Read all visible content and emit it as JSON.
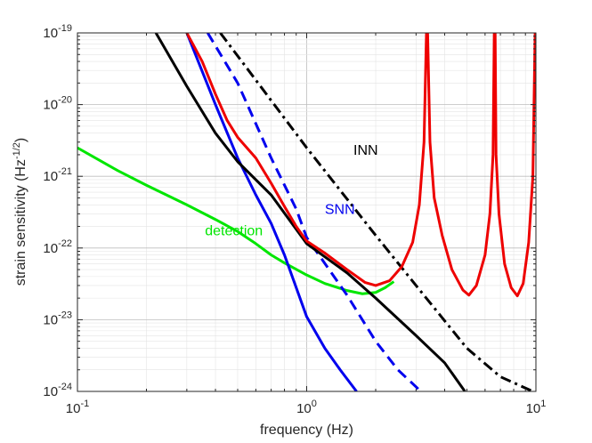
{
  "chart_data": {
    "type": "line",
    "xscale": "log",
    "yscale": "log",
    "xlim": [
      0.1,
      10
    ],
    "ylim": [
      1e-24,
      1e-19
    ],
    "xlabel": "frequency (Hz)",
    "ylabel_main": "strain sensitivity (Hz",
    "ylabel_exp": "-1/2",
    "ylabel_close": ")",
    "grid": true,
    "x_ticks": [
      {
        "value": 0.1,
        "base": "10",
        "exp": "-1"
      },
      {
        "value": 1,
        "base": "10",
        "exp": "0"
      },
      {
        "value": 10,
        "base": "10",
        "exp": "1"
      }
    ],
    "y_ticks": [
      {
        "value": 1e-24,
        "base": "10",
        "exp": "-24"
      },
      {
        "value": 1e-23,
        "base": "10",
        "exp": "-23"
      },
      {
        "value": 1e-22,
        "base": "10",
        "exp": "-22"
      },
      {
        "value": 1e-21,
        "base": "10",
        "exp": "-21"
      },
      {
        "value": 1e-20,
        "base": "10",
        "exp": "-20"
      },
      {
        "value": 1e-19,
        "base": "10",
        "exp": "-19"
      }
    ],
    "series": [
      {
        "name": "detection",
        "color": "#00e600",
        "dash": "solid",
        "points": [
          [
            0.1,
            2.5e-21
          ],
          [
            0.15,
            1.2e-21
          ],
          [
            0.2,
            7.5e-22
          ],
          [
            0.3,
            4e-22
          ],
          [
            0.4,
            2.5e-22
          ],
          [
            0.5,
            1.7e-22
          ],
          [
            0.6,
            1.15e-22
          ],
          [
            0.7,
            8e-23
          ],
          [
            0.8,
            6.2e-23
          ],
          [
            1.0,
            4.2e-23
          ],
          [
            1.2,
            3.2e-23
          ],
          [
            1.5,
            2.55e-23
          ],
          [
            1.75,
            2.3e-23
          ],
          [
            2.0,
            2.4e-23
          ],
          [
            2.2,
            2.8e-23
          ],
          [
            2.4,
            3.4e-23
          ]
        ]
      },
      {
        "name": "SNN",
        "color": "#0000ee",
        "dash": "solid",
        "points": [
          [
            0.3,
            1e-19
          ],
          [
            0.4,
            1e-20
          ],
          [
            0.5,
            1.8e-21
          ],
          [
            0.6,
            5.5e-22
          ],
          [
            0.7,
            2.2e-22
          ],
          [
            0.8,
            8e-23
          ],
          [
            1.0,
            1.1e-23
          ],
          [
            1.2,
            4e-24
          ],
          [
            1.4,
            2e-24
          ],
          [
            1.65,
            1e-24
          ]
        ]
      },
      {
        "name": "SNN-dashed",
        "color": "#0000ee",
        "dash": "dashed",
        "points": [
          [
            0.37,
            1e-19
          ],
          [
            0.5,
            2e-20
          ],
          [
            0.7,
            1.8e-21
          ],
          [
            0.9,
            3.5e-22
          ],
          [
            1.0,
            1.4e-22
          ],
          [
            1.5,
            2.2e-23
          ],
          [
            2.0,
            5e-24
          ],
          [
            2.5,
            2e-24
          ],
          [
            3.15,
            1e-24
          ]
        ]
      },
      {
        "name": "black-solid",
        "color": "#000000",
        "dash": "solid",
        "points": [
          [
            0.22,
            1e-19
          ],
          [
            0.3,
            1.8e-20
          ],
          [
            0.4,
            4e-21
          ],
          [
            0.5,
            1.6e-21
          ],
          [
            0.7,
            5.5e-22
          ],
          [
            1.0,
            1.15e-22
          ],
          [
            1.5,
            4.5e-23
          ],
          [
            2.0,
            2e-23
          ],
          [
            3.0,
            6e-24
          ],
          [
            4.0,
            2.5e-24
          ],
          [
            4.9,
            1e-24
          ]
        ]
      },
      {
        "name": "INN",
        "color": "#000000",
        "dash": "dashdot",
        "points": [
          [
            0.42,
            1e-19
          ],
          [
            0.6,
            2.2e-20
          ],
          [
            1.0,
            2.5e-21
          ],
          [
            2.0,
            1.5e-22
          ],
          [
            3.0,
            3e-23
          ],
          [
            5.0,
            4e-24
          ],
          [
            7.0,
            1.6e-24
          ],
          [
            9.7,
            1e-24
          ]
        ]
      },
      {
        "name": "red",
        "color": "#ee0000",
        "dash": "solid",
        "points": [
          [
            0.3,
            1e-19
          ],
          [
            0.35,
            4e-20
          ],
          [
            0.4,
            1.4e-20
          ],
          [
            0.45,
            6e-21
          ],
          [
            0.5,
            3.5e-21
          ],
          [
            0.6,
            1.8e-21
          ],
          [
            0.7,
            8e-22
          ],
          [
            0.8,
            3.8e-22
          ],
          [
            0.9,
            2e-22
          ],
          [
            1.0,
            1.25e-22
          ],
          [
            1.2,
            8.5e-23
          ],
          [
            1.5,
            5e-23
          ],
          [
            1.8,
            3.3e-23
          ],
          [
            2.0,
            3e-23
          ],
          [
            2.3,
            3.5e-23
          ],
          [
            2.6,
            5.5e-23
          ],
          [
            2.9,
            1.2e-22
          ],
          [
            3.1,
            4e-22
          ],
          [
            3.25,
            3e-21
          ],
          [
            3.33,
            1e-19
          ],
          [
            3.37,
            1e-19
          ],
          [
            3.45,
            3e-21
          ],
          [
            3.6,
            5e-22
          ],
          [
            3.9,
            1.5e-22
          ],
          [
            4.3,
            5e-23
          ],
          [
            4.8,
            2.6e-23
          ],
          [
            5.1,
            2.2e-23
          ],
          [
            5.5,
            3e-23
          ],
          [
            6.0,
            8e-23
          ],
          [
            6.3,
            3e-22
          ],
          [
            6.5,
            2e-21
          ],
          [
            6.58,
            1e-19
          ],
          [
            6.64,
            1e-19
          ],
          [
            6.7,
            2e-21
          ],
          [
            6.9,
            3e-22
          ],
          [
            7.3,
            6e-23
          ],
          [
            7.8,
            2.8e-23
          ],
          [
            8.3,
            2.15e-23
          ],
          [
            8.8,
            3.2e-23
          ],
          [
            9.3,
            1.2e-22
          ],
          [
            9.7,
            1e-21
          ],
          [
            9.92,
            1e-19
          ]
        ]
      }
    ],
    "annotations": [
      {
        "text": "INN",
        "x": 1.6,
        "y": 2e-21,
        "color": "#000000"
      },
      {
        "text": "SNN",
        "x": 1.2,
        "y": 3e-22,
        "color": "#0000ee"
      },
      {
        "text": "detection",
        "x": 0.36,
        "y": 1.5e-22,
        "color": "#00e600"
      }
    ]
  }
}
